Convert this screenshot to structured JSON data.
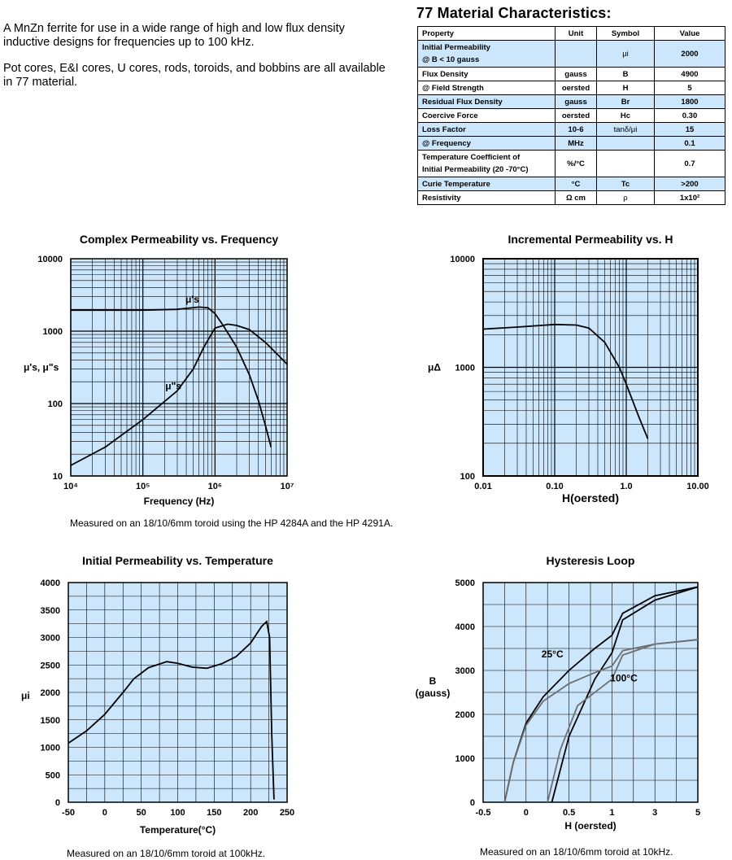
{
  "intro": {
    "p1": "A MnZn ferrite for use in a wide range of high and low flux density inductive designs for frequencies up to 100 kHz.",
    "p2": "Pot cores, E&I cores, U cores, rods, toroids, and bobbins are all available in 77 material."
  },
  "characteristics": {
    "title": "77 Material Characteristics:",
    "headers": [
      "Property",
      "Unit",
      "Symbol",
      "Value"
    ],
    "rows": [
      {
        "property": "Initial Permeability",
        "property2": "@ B < 10 gauss",
        "unit": "",
        "symbol": "μi",
        "value": "2000"
      },
      {
        "property": "Flux Density",
        "unit": "gauss",
        "symbol": "B",
        "value": "4900"
      },
      {
        "property": "@ Field Strength",
        "unit": "oersted",
        "symbol": "H",
        "value": "5"
      },
      {
        "property": "Residual Flux Density",
        "unit": "gauss",
        "symbol": "Br",
        "value": "1800"
      },
      {
        "property": "Coercive Force",
        "unit": "oersted",
        "symbol": "Hc",
        "value": "0.30"
      },
      {
        "property": "Loss Factor",
        "unit": "10-6",
        "symbol": "tanδ/μi",
        "value": "15"
      },
      {
        "property": "@ Frequency",
        "unit": "MHz",
        "symbol": "",
        "value": "0.1"
      },
      {
        "property": "Temperature Coefficient of",
        "property2": "Initial Permeability (20 -70°C)",
        "unit": "%/°C",
        "symbol": "",
        "value": "0.7"
      },
      {
        "property": "Curie Temperature",
        "unit": "°C",
        "symbol": "Tc",
        "value": ">200"
      },
      {
        "property": "Resistivity",
        "unit": "Ω cm",
        "symbol": "ρ",
        "value": "1x10²"
      }
    ]
  },
  "chart_data": [
    {
      "type": "line",
      "title": "Complex Permeability vs. Frequency",
      "xlabel": "Frequency (Hz)",
      "ylabel": "μ's, μ\"s",
      "xscale": "log",
      "yscale": "log",
      "xlim": [
        10000,
        10000000
      ],
      "ylim": [
        10,
        10000
      ],
      "xticks": [
        "10⁴",
        "10⁵",
        "10⁶",
        "10⁷"
      ],
      "yticks": [
        "10",
        "100",
        "1000",
        "10000"
      ],
      "series": [
        {
          "name": "μ's",
          "x": [
            10000,
            100000,
            300000,
            600000,
            800000,
            1000000,
            1300000,
            2000000,
            3000000,
            4000000,
            5000000,
            6000000
          ],
          "y": [
            1950,
            1950,
            2000,
            2150,
            2100,
            1750,
            1200,
            600,
            250,
            110,
            50,
            25
          ]
        },
        {
          "name": "μ\"s",
          "x": [
            10000,
            30000,
            100000,
            300000,
            500000,
            700000,
            1000000,
            1500000,
            2000000,
            3000000,
            5000000,
            7000000,
            10000000
          ],
          "y": [
            14,
            25,
            60,
            150,
            300,
            600,
            1100,
            1250,
            1200,
            1050,
            700,
            500,
            350
          ]
        }
      ],
      "caption": "Measured on an 18/10/6mm toroid using the HP 4284A and the HP 4291A."
    },
    {
      "type": "line",
      "title": "Incremental Permeability vs. H",
      "xlabel": "H(oersted)",
      "ylabel": "μΔ",
      "xscale": "log",
      "yscale": "log",
      "xlim": [
        0.01,
        10
      ],
      "ylim": [
        100,
        10000
      ],
      "xticks": [
        "0.01",
        "0.10",
        "1.0",
        "10.00"
      ],
      "yticks": [
        "100",
        "1000",
        "10000"
      ],
      "series": [
        {
          "name": "μΔ",
          "x": [
            0.01,
            0.03,
            0.1,
            0.2,
            0.3,
            0.5,
            0.8,
            1.0,
            1.5,
            2.0
          ],
          "y": [
            2250,
            2350,
            2480,
            2450,
            2300,
            1700,
            1000,
            700,
            350,
            220
          ]
        }
      ]
    },
    {
      "type": "line",
      "title": "Initial Permeability vs. Temperature",
      "xlabel": "Temperature(°C)",
      "ylabel": "μi",
      "xlim": [
        -50,
        250
      ],
      "ylim": [
        0,
        4000
      ],
      "xticks": [
        "-50",
        "0",
        "50",
        "100",
        "150",
        "200",
        "250"
      ],
      "yticks": [
        "0",
        "500",
        "1000",
        "1500",
        "2000",
        "2500",
        "3000",
        "3500",
        "4000"
      ],
      "series": [
        {
          "name": "μi",
          "x": [
            -50,
            -25,
            0,
            25,
            40,
            60,
            85,
            100,
            120,
            140,
            160,
            180,
            200,
            215,
            222,
            226,
            229,
            232
          ],
          "y": [
            1075,
            1300,
            1600,
            2000,
            2250,
            2450,
            2560,
            2530,
            2460,
            2440,
            2520,
            2650,
            2900,
            3200,
            3290,
            3000,
            1200,
            50
          ]
        }
      ],
      "caption": "Measured on an 18/10/6mm toroid at 100kHz."
    },
    {
      "type": "line",
      "title": "Hysteresis Loop",
      "xlabel": "H (oersted)",
      "ylabel": "B (gauss)",
      "xlim": [
        -0.5,
        5
      ],
      "ylim": [
        0,
        5000
      ],
      "xticks": [
        "-0.5",
        "0",
        "0.5",
        "1",
        "3",
        "5"
      ],
      "yticks": [
        "0",
        "1000",
        "2000",
        "3000",
        "4000",
        "5000"
      ],
      "series": [
        {
          "name": "25°C upper",
          "x": [
            -0.25,
            -0.15,
            0,
            0.2,
            0.5,
            0.8,
            1,
            1.5,
            3,
            5
          ],
          "y": [
            0,
            900,
            1800,
            2400,
            3000,
            3500,
            3800,
            4300,
            4700,
            4900
          ]
        },
        {
          "name": "25°C lower",
          "x": [
            0.3,
            0.5,
            0.8,
            1,
            1.5,
            3,
            5
          ],
          "y": [
            0,
            1500,
            2800,
            3400,
            4150,
            4600,
            4900
          ]
        },
        {
          "name": "100°C upper",
          "x": [
            -0.25,
            -0.15,
            0,
            0.2,
            0.5,
            0.8,
            1,
            1.5,
            3,
            5
          ],
          "y": [
            0,
            900,
            1750,
            2300,
            2700,
            2950,
            3100,
            3450,
            3600,
            3700
          ]
        },
        {
          "name": "100°C lower",
          "x": [
            0.25,
            0.4,
            0.6,
            1,
            1.5,
            3,
            5
          ],
          "y": [
            0,
            1200,
            2200,
            2800,
            3350,
            3600,
            3700
          ]
        }
      ],
      "labels": [
        "25°C",
        "100°C"
      ],
      "caption": "Measured on an 18/10/6mm toroid at 10kHz."
    }
  ]
}
